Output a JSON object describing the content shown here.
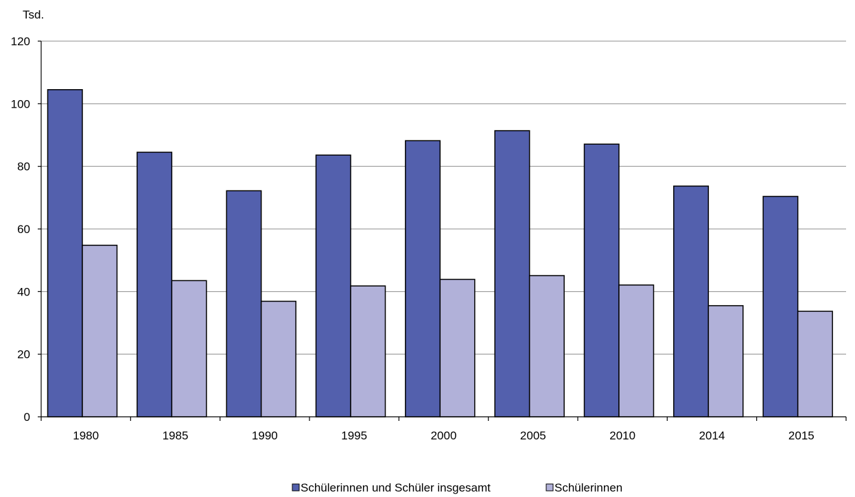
{
  "chart_data": {
    "type": "bar",
    "unit_label": "Tsd.",
    "categories": [
      "1980",
      "1985",
      "1990",
      "1995",
      "2000",
      "2005",
      "2010",
      "2014",
      "2015"
    ],
    "series": [
      {
        "name": "Schülerinnen und Schüler insgesamt",
        "color": "#5360ad",
        "values": [
          104.5,
          84.5,
          72.2,
          83.6,
          88.2,
          91.4,
          87.1,
          73.7,
          70.4
        ]
      },
      {
        "name": "Schülerinnen",
        "color": "#b1b1d9",
        "values": [
          54.8,
          43.5,
          36.9,
          41.8,
          43.9,
          45.1,
          42.1,
          35.5,
          33.7
        ]
      }
    ],
    "ylim": [
      0,
      120
    ],
    "yticks": [
      0,
      20,
      40,
      60,
      80,
      100,
      120
    ],
    "grid": true,
    "legend_position": "bottom-center"
  }
}
